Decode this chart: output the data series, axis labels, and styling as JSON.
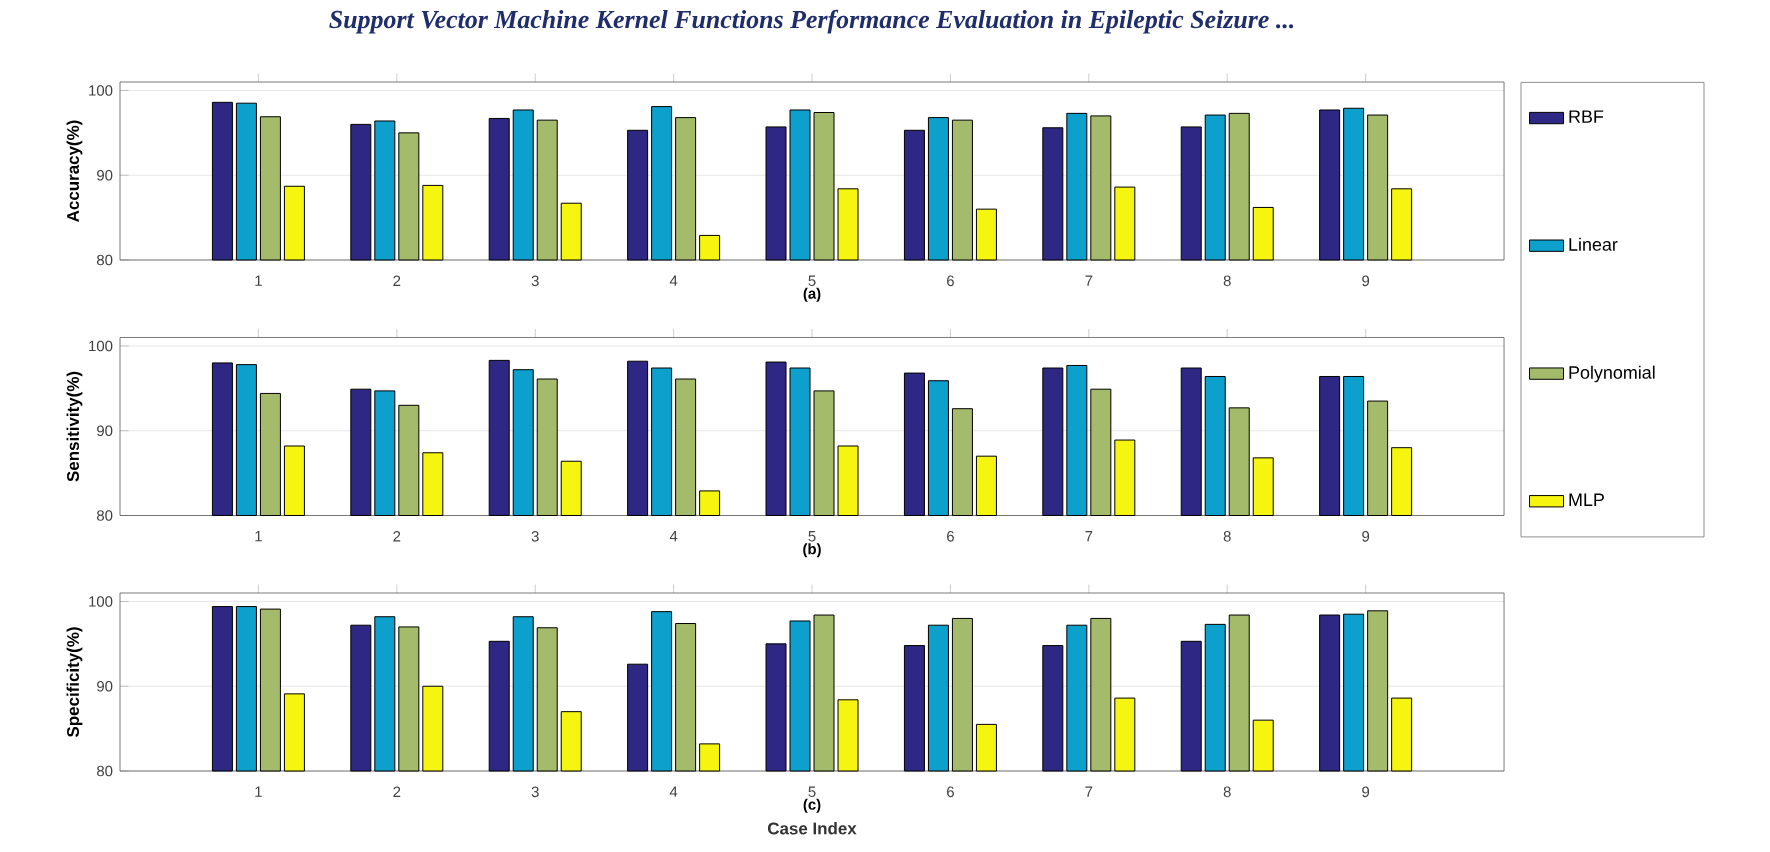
{
  "chart_data": [
    {
      "type": "bar",
      "ylabel": "Accuracy(%)",
      "xlabel": "(a)",
      "annotations": [
        "Support Vector Machine Kernel Functions Performance Evaluation in Epileptic Seizure ..."
      ],
      "categories": [
        "1",
        "2",
        "3",
        "4",
        "5",
        "6",
        "7",
        "8",
        "9"
      ],
      "ylim": [
        80,
        101
      ],
      "yticks": [
        80,
        90,
        100
      ],
      "grid": "y",
      "legend": "right",
      "series": [
        {
          "name": "RBF",
          "color": "#2e2783",
          "values": [
            98.6,
            96.0,
            96.7,
            95.3,
            95.7,
            95.3,
            95.6,
            95.7,
            97.7
          ]
        },
        {
          "name": "Linear",
          "color": "#0ea0cc",
          "values": [
            98.5,
            96.4,
            97.7,
            98.1,
            97.7,
            96.8,
            97.3,
            97.1,
            97.9
          ]
        },
        {
          "name": "Polynomial",
          "color": "#a3bb6a",
          "values": [
            96.9,
            95.0,
            96.5,
            96.8,
            97.4,
            96.5,
            97.0,
            97.3,
            97.1
          ]
        },
        {
          "name": "MLP",
          "color": "#f5f50f",
          "values": [
            88.7,
            88.8,
            86.7,
            82.9,
            88.4,
            86.0,
            88.6,
            86.2,
            88.4
          ]
        }
      ]
    },
    {
      "type": "bar",
      "ylabel": "Sensitivity(%)",
      "xlabel": "(b)",
      "categories": [
        "1",
        "2",
        "3",
        "4",
        "5",
        "6",
        "7",
        "8",
        "9"
      ],
      "ylim": [
        80,
        101
      ],
      "yticks": [
        80,
        90,
        100
      ],
      "grid": "y",
      "series": [
        {
          "color": "#2e2783",
          "values": [
            98.0,
            94.9,
            98.3,
            98.2,
            98.1,
            96.8,
            97.4,
            97.4,
            96.4
          ]
        },
        {
          "color": "#0ea0cc",
          "values": [
            97.8,
            94.7,
            97.2,
            97.4,
            97.4,
            95.9,
            97.7,
            96.4,
            96.4
          ]
        },
        {
          "color": "#a3bb6a",
          "values": [
            94.4,
            93.0,
            96.1,
            96.1,
            94.7,
            92.6,
            94.9,
            92.7,
            93.5
          ]
        },
        {
          "color": "#f5f50f",
          "values": [
            88.2,
            87.4,
            86.4,
            82.9,
            88.2,
            87.0,
            88.9,
            86.8,
            88.0
          ]
        }
      ]
    },
    {
      "type": "bar",
      "ylabel": "Specificity(%)",
      "xlabel": "(c)",
      "annotations": [
        "Case Index"
      ],
      "categories": [
        "1",
        "2",
        "3",
        "4",
        "5",
        "6",
        "7",
        "8",
        "9"
      ],
      "ylim": [
        80,
        101
      ],
      "yticks": [
        80,
        90,
        100
      ],
      "grid": "y",
      "series": [
        {
          "color": "#2e2783",
          "values": [
            99.4,
            97.2,
            95.3,
            92.6,
            95.0,
            94.8,
            94.8,
            95.3,
            98.4
          ]
        },
        {
          "color": "#0ea0cc",
          "values": [
            99.4,
            98.2,
            98.2,
            98.8,
            97.7,
            97.2,
            97.2,
            97.3,
            98.5
          ]
        },
        {
          "color": "#a3bb6a",
          "values": [
            99.1,
            97.0,
            96.9,
            97.4,
            98.4,
            98.0,
            98.0,
            98.4,
            98.9
          ]
        },
        {
          "color": "#f5f50f",
          "values": [
            89.1,
            90.0,
            87.0,
            83.2,
            88.4,
            85.5,
            88.6,
            86.0,
            88.6
          ]
        }
      ]
    }
  ]
}
